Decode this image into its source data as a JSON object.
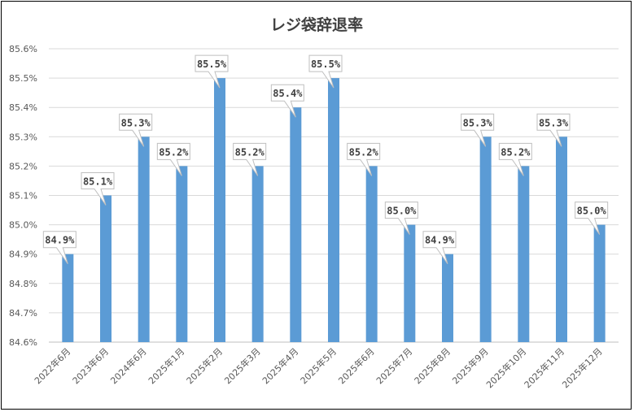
{
  "chart_data": {
    "type": "bar",
    "title": "レジ袋辞退率",
    "xlabel": "",
    "ylabel": "",
    "categories": [
      "2022年6月",
      "2023年6月",
      "2024年6月",
      "2025年1月",
      "2025年2月",
      "2025年3月",
      "2025年4月",
      "2025年5月",
      "2025年6月",
      "2025年7月",
      "2025年8月",
      "2025年9月",
      "2025年10月",
      "2025年11月",
      "2025年12月"
    ],
    "values": [
      84.9,
      85.1,
      85.3,
      85.2,
      85.5,
      85.2,
      85.4,
      85.5,
      85.2,
      85.0,
      84.9,
      85.3,
      85.2,
      85.3,
      85.0
    ],
    "data_labels": [
      "84.9%",
      "85.1%",
      "85.3%",
      "85.2%",
      "85.5%",
      "85.2%",
      "85.4%",
      "85.5%",
      "85.2%",
      "85.0%",
      "84.9%",
      "85.3%",
      "85.2%",
      "85.3%",
      "85.0%"
    ],
    "ylim": [
      84.6,
      85.6
    ],
    "yticks": [
      "84.6%",
      "84.7%",
      "84.8%",
      "84.9%",
      "85.0%",
      "85.1%",
      "85.2%",
      "85.3%",
      "85.4%",
      "85.5%",
      "85.6%"
    ],
    "grid": true,
    "legend": "none",
    "bar_color": "#5b9bd5"
  }
}
